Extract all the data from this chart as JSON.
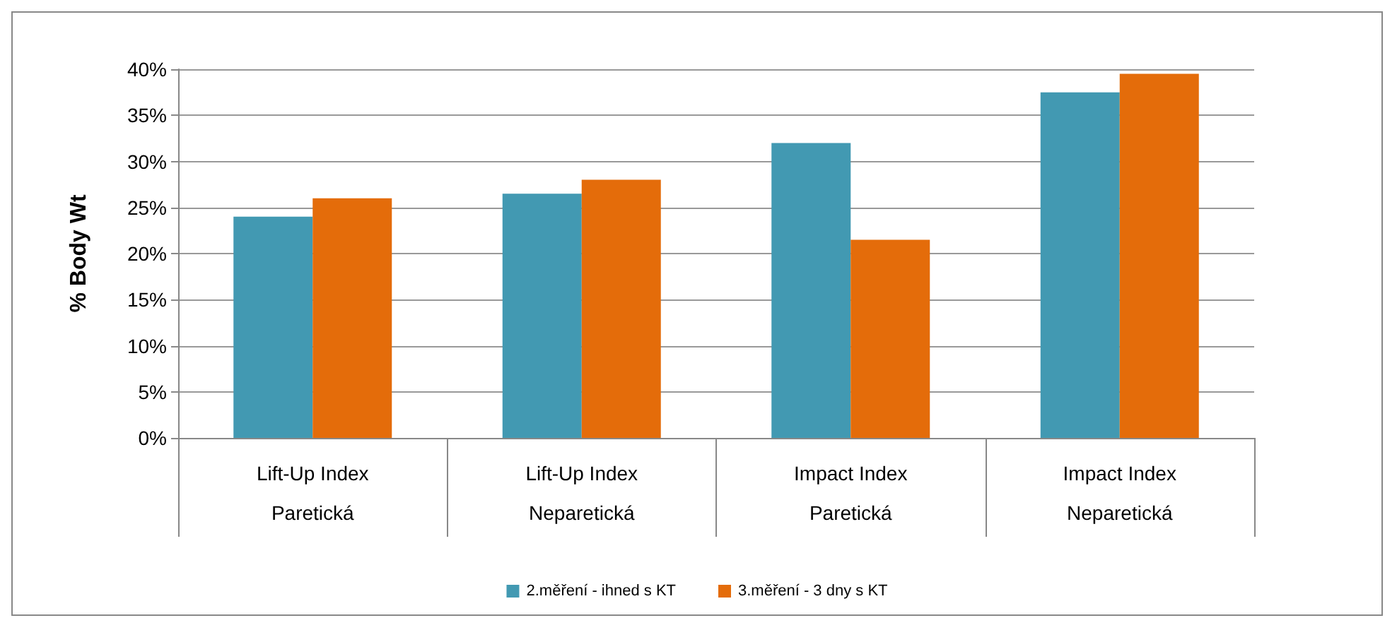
{
  "chart_data": {
    "type": "bar",
    "ylabel": "% Body Wt",
    "categories": [
      "Lift-Up Index\n\nParetická",
      "Lift-Up Index\n\nNeparetická",
      "Impact Index\n\nParetická",
      "Impact Index\n\nNeparetická"
    ],
    "series": [
      {
        "name": "2.měření - ihned s KT",
        "color": "#4299b2",
        "values": [
          24,
          26.5,
          32,
          37.5
        ]
      },
      {
        "name": "3.měření - 3 dny s KT",
        "color": "#e46c0a",
        "values": [
          26,
          28,
          21.5,
          39.5
        ]
      }
    ],
    "ylim": [
      0,
      40
    ],
    "yticks": [
      {
        "value": 0,
        "label": "0%"
      },
      {
        "value": 5,
        "label": "5%"
      },
      {
        "value": 10,
        "label": "10%"
      },
      {
        "value": 15,
        "label": "15%"
      },
      {
        "value": 20,
        "label": "20%"
      },
      {
        "value": 25,
        "label": "25%"
      },
      {
        "value": 30,
        "label": "30%"
      },
      {
        "value": 35,
        "label": "35%"
      },
      {
        "value": 40,
        "label": "40%"
      }
    ],
    "grid": "y",
    "legend": "bottom"
  }
}
